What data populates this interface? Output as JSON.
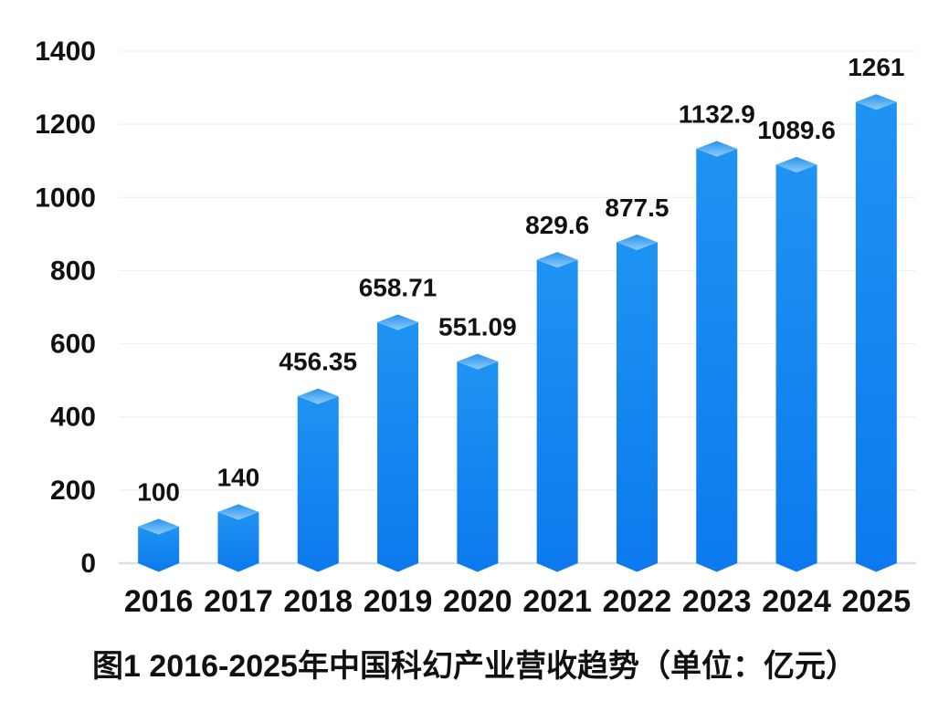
{
  "chart_data": {
    "type": "bar",
    "title": "图1 2016-2025年中国科幻产业营收趋势（单位：亿元）",
    "categories": [
      "2016",
      "2017",
      "2018",
      "2019",
      "2020",
      "2021",
      "2022",
      "2023",
      "2024",
      "2025"
    ],
    "values": [
      100,
      140,
      456.35,
      658.71,
      551.09,
      829.6,
      877.5,
      1132.9,
      1089.6,
      1261
    ],
    "value_labels": [
      "100",
      "140",
      "456.35",
      "658.71",
      "551.09",
      "829.6",
      "877.5",
      "1132.9",
      "1089.6",
      "1261"
    ],
    "xlabel": "",
    "ylabel": "",
    "ylim": [
      0,
      1400
    ],
    "yticks": [
      0,
      200,
      400,
      600,
      800,
      1000,
      1200,
      1400
    ],
    "grid": true,
    "legend_position": "none",
    "bar_style": "3d-box",
    "colors": {
      "bar_body_top": "#1f93f2",
      "bar_body_bottom": "#0c79ee",
      "bar_face_top": "#2593ee",
      "bar_face_bottom": "#90cbf8",
      "gridline": "#eef0f2",
      "baseline": "#dcdfe2",
      "text": "#111111",
      "background": "#ffffff"
    }
  }
}
